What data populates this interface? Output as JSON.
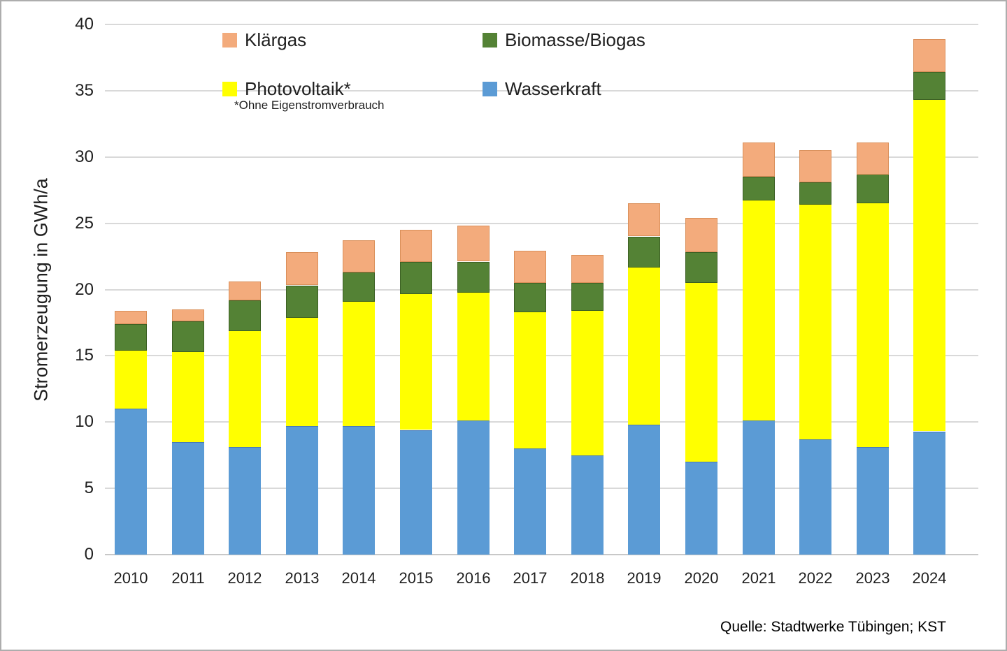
{
  "chart_data": {
    "type": "bar",
    "stacked": true,
    "title": "",
    "ylabel": "Stromerzeugung in GWh/a",
    "xlabel": "",
    "ylim": [
      0,
      40
    ],
    "yticks": [
      0,
      5,
      10,
      15,
      20,
      25,
      30,
      35,
      40
    ],
    "grid": true,
    "legend_position": "top-inside",
    "categories": [
      "2010",
      "2011",
      "2012",
      "2013",
      "2014",
      "2015",
      "2016",
      "2017",
      "2018",
      "2019",
      "2020",
      "2021",
      "2022",
      "2023",
      "2024"
    ],
    "series": [
      {
        "name": "Wasserkraft",
        "color": "#5B9BD5",
        "values": [
          11.0,
          8.5,
          8.1,
          9.7,
          9.7,
          9.4,
          10.1,
          8.0,
          7.5,
          9.8,
          7.0,
          10.1,
          8.7,
          8.1,
          9.3
        ]
      },
      {
        "name": "Photovoltaik*",
        "color": "#FFFF00",
        "values": [
          4.4,
          6.8,
          8.8,
          8.2,
          9.4,
          10.3,
          9.7,
          10.3,
          10.9,
          11.9,
          13.5,
          16.6,
          17.7,
          18.4,
          25.0
        ]
      },
      {
        "name": "Biomasse/Biogas",
        "color": "#548235",
        "values": [
          2.0,
          2.3,
          2.3,
          2.4,
          2.2,
          2.4,
          2.3,
          2.2,
          2.1,
          2.3,
          2.3,
          1.8,
          1.7,
          2.2,
          2.1
        ]
      },
      {
        "name": "Klärgas",
        "color": "#F3AB7C",
        "values": [
          1.0,
          0.9,
          1.4,
          2.5,
          2.4,
          2.4,
          2.7,
          2.4,
          2.1,
          2.5,
          2.6,
          2.6,
          2.4,
          2.4,
          2.5
        ]
      }
    ],
    "totals": [
      18.4,
      18.5,
      20.6,
      22.8,
      23.7,
      24.5,
      24.8,
      22.9,
      22.6,
      26.5,
      25.4,
      31.1,
      30.5,
      31.1,
      38.9
    ],
    "legend": [
      {
        "label": "Klärgas",
        "color": "#F3AB7C"
      },
      {
        "label": "Biomasse/Biogas",
        "color": "#548235"
      },
      {
        "label": "Photovoltaik*",
        "color": "#FFFF00"
      },
      {
        "label": "Wasserkraft",
        "color": "#5B9BD5"
      }
    ],
    "legend_note": "*Ohne Eigenstromverbrauch",
    "source": "Quelle: Stadtwerke Tübingen; KST"
  }
}
